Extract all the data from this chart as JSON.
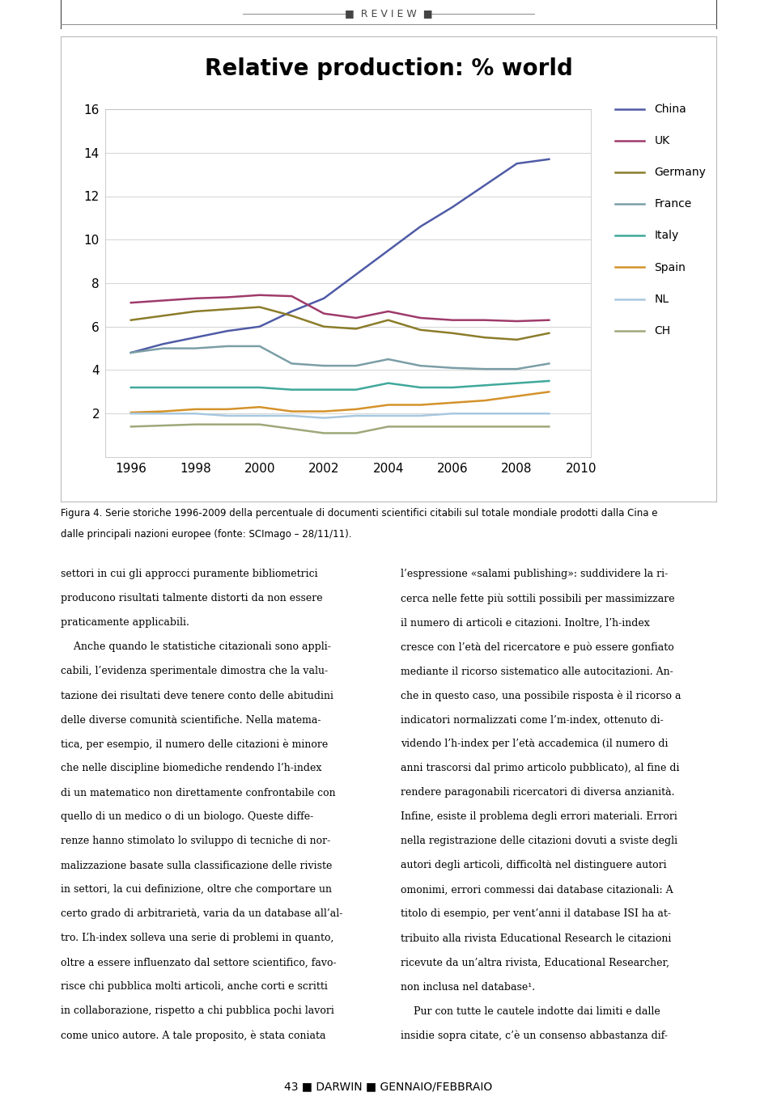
{
  "title": "Relative production: % world",
  "years": [
    1996,
    1997,
    1998,
    1999,
    2000,
    2001,
    2002,
    2003,
    2004,
    2005,
    2006,
    2007,
    2008,
    2009
  ],
  "series": {
    "China": [
      4.8,
      5.2,
      5.5,
      5.8,
      6.0,
      6.7,
      7.3,
      8.4,
      9.5,
      10.6,
      11.5,
      12.5,
      13.5,
      13.7
    ],
    "UK": [
      7.1,
      7.2,
      7.3,
      7.35,
      7.45,
      7.4,
      6.6,
      6.4,
      6.7,
      6.4,
      6.3,
      6.3,
      6.25,
      6.3
    ],
    "Germany": [
      6.3,
      6.5,
      6.7,
      6.8,
      6.9,
      6.5,
      6.0,
      5.9,
      6.3,
      5.85,
      5.7,
      5.5,
      5.4,
      5.7
    ],
    "France": [
      4.8,
      5.0,
      5.0,
      5.1,
      5.1,
      4.3,
      4.2,
      4.2,
      4.5,
      4.2,
      4.1,
      4.05,
      4.05,
      4.3
    ],
    "Italy": [
      3.2,
      3.2,
      3.2,
      3.2,
      3.2,
      3.1,
      3.1,
      3.1,
      3.4,
      3.2,
      3.2,
      3.3,
      3.4,
      3.5
    ],
    "Spain": [
      2.05,
      2.1,
      2.2,
      2.2,
      2.3,
      2.1,
      2.1,
      2.2,
      2.4,
      2.4,
      2.5,
      2.6,
      2.8,
      3.0
    ],
    "NL": [
      2.0,
      2.0,
      2.0,
      1.9,
      1.9,
      1.9,
      1.8,
      1.9,
      1.9,
      1.9,
      2.0,
      2.0,
      2.0,
      2.0
    ],
    "CH": [
      1.4,
      1.45,
      1.5,
      1.5,
      1.5,
      1.3,
      1.1,
      1.1,
      1.4,
      1.4,
      1.4,
      1.4,
      1.4,
      1.4
    ]
  },
  "colors": {
    "China": "#4F5BA6",
    "UK": "#9E3B6B",
    "Germany": "#8B7C2A",
    "France": "#7B9EA6",
    "Italy": "#3FA89B",
    "Spain": "#D4922B",
    "NL": "#A8C8E0",
    "CH": "#9EA87A"
  },
  "ylim": [
    0,
    16
  ],
  "yticks": [
    0,
    2,
    4,
    6,
    8,
    10,
    12,
    14,
    16
  ],
  "xticks": [
    1996,
    1998,
    2000,
    2002,
    2004,
    2006,
    2008,
    2010
  ],
  "figsize": [
    9.6,
    13.66
  ],
  "dpi": 100,
  "caption_line1": "Figura 4. Serie storiche 1996-2009 della percentuale di documenti scientifici citabili sul totale mondiale prodotti dalla Cina e",
  "caption_line2": "dalle principali nazioni europee (fonte: SCImago – 28/11/11).",
  "body_left_lines": [
    "settori in cui gli approcci puramente bibliometrici",
    "producono risultati talmente distorti da non essere",
    "praticamente applicabili.",
    "    Anche quando le statistiche citazionali sono appli-",
    "cabili, l’evidenza sperimentale dimostra che la valu-",
    "tazione dei risultati deve tenere conto delle abitudini",
    "delle diverse comunità scientifiche. Nella matema-",
    "tica, per esempio, il numero delle citazioni è minore",
    "che nelle discipline biomediche rendendo l’h-index",
    "di un matematico non direttamente confrontabile con",
    "quello di un medico o di un biologo. Queste diffe-",
    "renze hanno stimolato lo sviluppo di tecniche di nor-",
    "malizzazione basate sulla classificazione delle riviste",
    "in settori, la cui definizione, oltre che comportare un",
    "certo grado di arbitrarietà, varia da un database all’al-",
    "tro. L’h-index solleva una serie di problemi in quanto,",
    "oltre a essere influenzato dal settore scientifico, favo-",
    "risce chi pubblica molti articoli, anche corti e scritti",
    "in collaborazione, rispetto a chi pubblica pochi lavori",
    "come unico autore. A tale proposito, è stata coniata"
  ],
  "body_right_lines": [
    "l’espressione «salami publishing»: suddividere la ri-",
    "cerca nelle fette più sottili possibili per massimizzare",
    "il numero di articoli e citazioni. Inoltre, l’h-index",
    "cresce con l’età del ricercatore e può essere gonfiato",
    "mediante il ricorso sistematico alle autocitazioni. An-",
    "che in questo caso, una possibile risposta è il ricorso a",
    "indicatori normalizzati come l’m-index, ottenuto di-",
    "videndo l’h-index per l’età accademica (il numero di",
    "anni trascorsi dal primo articolo pubblicato), al fine di",
    "rendere paragonabili ricercatori di diversa anzianità.",
    "Infine, esiste il problema degli errori materiali. Errori",
    "nella registrazione delle citazioni dovuti a sviste degli",
    "autori degli articoli, difficoltà nel distinguere autori",
    "omonimi, errori commessi dai database citazionali: A",
    "titolo di esempio, per vent’anni il database ISI ha at-",
    "tribuito alla rivista Educational Research le citazioni",
    "ricevute da un’altra rivista, Educational Researcher,",
    "non inclusa nel database¹.",
    "    Pur con tutte le cautele indotte dai limiti e dalle",
    "insidie sopra citate, c’è un consenso abbastanza dif-"
  ],
  "footer_text": "43 ■ DARWIN ■ GENNAIO/FEBBRAIO",
  "page_bg": "#ffffff",
  "border_color": "#aaaaaa"
}
